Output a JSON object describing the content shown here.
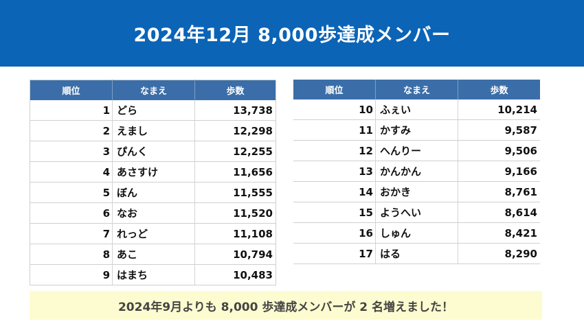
{
  "title": "2024年12月 8,000歩達成メンバー",
  "headers": {
    "rank": "順位",
    "name": "なまえ",
    "steps": "歩数"
  },
  "left_rows": [
    {
      "rank": "1",
      "name": "どら",
      "steps": "13,738"
    },
    {
      "rank": "2",
      "name": "えまし",
      "steps": "12,298"
    },
    {
      "rank": "3",
      "name": "ぴんく",
      "steps": "12,255"
    },
    {
      "rank": "4",
      "name": "あさすけ",
      "steps": "11,656"
    },
    {
      "rank": "5",
      "name": "ぼん",
      "steps": "11,555"
    },
    {
      "rank": "6",
      "name": "なお",
      "steps": "11,520"
    },
    {
      "rank": "7",
      "name": "れっど",
      "steps": "11,108"
    },
    {
      "rank": "8",
      "name": "あこ",
      "steps": "10,794"
    },
    {
      "rank": "9",
      "name": "はまち",
      "steps": "10,483"
    }
  ],
  "right_rows": [
    {
      "rank": "10",
      "name": "ふぇい",
      "steps": "10,214"
    },
    {
      "rank": "11",
      "name": "かすみ",
      "steps": "9,587"
    },
    {
      "rank": "12",
      "name": "へんりー",
      "steps": "9,506"
    },
    {
      "rank": "13",
      "name": "かんかん",
      "steps": "9,166"
    },
    {
      "rank": "14",
      "name": "おかき",
      "steps": "8,761"
    },
    {
      "rank": "15",
      "name": "ようへい",
      "steps": "8,614"
    },
    {
      "rank": "16",
      "name": "しゅん",
      "steps": "8,421"
    },
    {
      "rank": "17",
      "name": "はる",
      "steps": "8,290"
    }
  ],
  "footer_note": "2024年9月よりも 8,000 歩達成メンバーが 2 名増えました！",
  "colors": {
    "header_bg": "#0b64b6",
    "table_header_bg": "#3b6ea8",
    "note_bg": "#fdfcd0"
  }
}
